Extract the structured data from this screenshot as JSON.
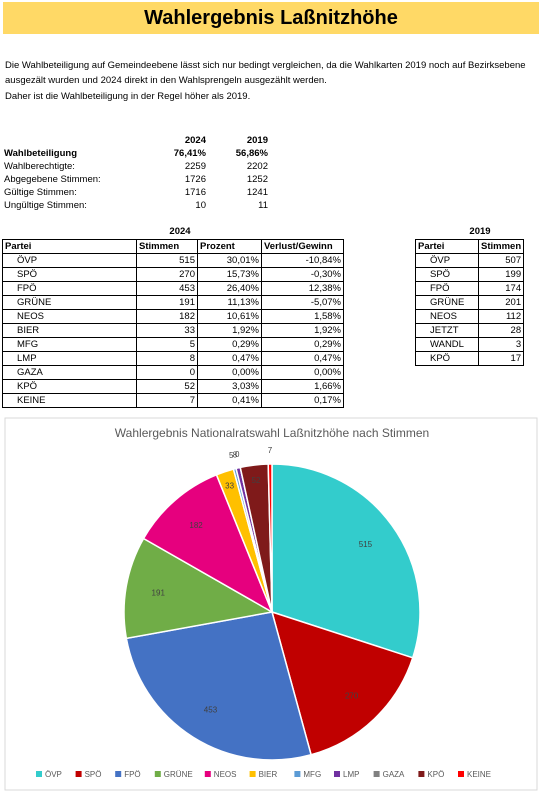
{
  "header": {
    "title": "Wahlergebnis Laßnitzhöhe"
  },
  "intro": [
    "Die Wahlbeteiligung auf Gemeindeebene lässt sich nur bedingt vergleichen, da die Wahlkarten 2019 noch auf Bezirksebene",
    "ausgezält wurden und 2024 direkt in den Wahlsprengeln ausgezählt werden.",
    "Daher ist die Wahlbeteiligung in der Regel höher als 2019."
  ],
  "summary": {
    "columns": [
      "2024",
      "2019"
    ],
    "rows": [
      [
        "Wahlbeteiligung",
        "76,41%",
        "56,86%"
      ],
      [
        "Wahlberechtigte:",
        "2259",
        "2202"
      ],
      [
        "Abgegebene Stimmen:",
        "1726",
        "1252"
      ],
      [
        "Gültige Stimmen:",
        "1716",
        "1241"
      ],
      [
        "Ungültige Stimmen:",
        "10",
        "11"
      ]
    ]
  },
  "table2024": {
    "year": "2024",
    "header": [
      "Partei",
      "Stimmen",
      "Prozent",
      "Verlust/Gewinn"
    ],
    "rows": [
      [
        "ÖVP",
        "515",
        "30,01%",
        "-10,84%"
      ],
      [
        "SPÖ",
        "270",
        "15,73%",
        "-0,30%"
      ],
      [
        "FPÖ",
        "453",
        "26,40%",
        "12,38%"
      ],
      [
        "GRÜNE",
        "191",
        "11,13%",
        "-5,07%"
      ],
      [
        "NEOS",
        "182",
        "10,61%",
        "1,58%"
      ],
      [
        "BIER",
        "33",
        "1,92%",
        "1,92%"
      ],
      [
        "MFG",
        "5",
        "0,29%",
        "0,29%"
      ],
      [
        "LMP",
        "8",
        "0,47%",
        "0,47%"
      ],
      [
        "GAZA",
        "0",
        "0,00%",
        "0,00%"
      ],
      [
        "KPÖ",
        "52",
        "3,03%",
        "1,66%"
      ],
      [
        "KEINE",
        "7",
        "0,41%",
        "0,17%"
      ]
    ]
  },
  "table2019": {
    "year": "2019",
    "header": [
      "Partei",
      "Stimmen"
    ],
    "rows": [
      [
        "ÖVP",
        "507"
      ],
      [
        "SPÖ",
        "199"
      ],
      [
        "FPÖ",
        "174"
      ],
      [
        "GRÜNE",
        "201"
      ],
      [
        "NEOS",
        "112"
      ],
      [
        "JETZT",
        "28"
      ],
      [
        "WANDL",
        "3"
      ],
      [
        "KPÖ",
        "17"
      ]
    ]
  },
  "chart_data": {
    "type": "pie",
    "title": "Wahlergebnis Nationalratswahl Laßnitzhöhe nach Stimmen",
    "categories": [
      "ÖVP",
      "SPÖ",
      "FPÖ",
      "GRÜNE",
      "NEOS",
      "BIER",
      "MFG",
      "LMP",
      "GAZA",
      "KPÖ",
      "KEINE"
    ],
    "values": [
      515,
      270,
      453,
      191,
      182,
      33,
      5,
      8,
      0,
      52,
      7
    ],
    "colors": [
      "#33cccc",
      "#c00000",
      "#4472c4",
      "#70ad47",
      "#e6007e",
      "#ffc000",
      "#5b9bd5",
      "#7030a0",
      "#808080",
      "#7f1a1a",
      "#ff0000"
    ],
    "legend": "bottom"
  }
}
